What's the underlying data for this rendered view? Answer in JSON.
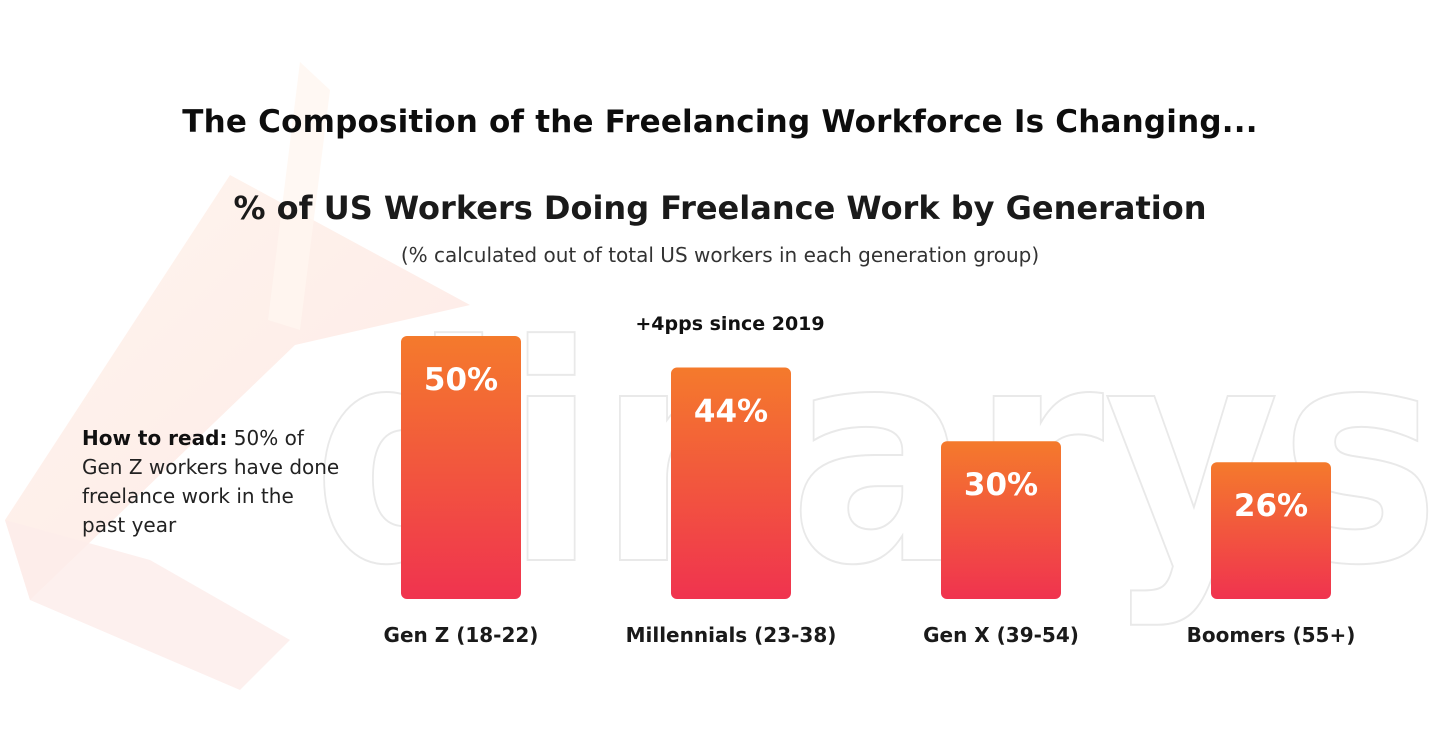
{
  "title": "The Composition of the Freelancing Workforce Is Changing...",
  "subtitle": "% of US Workers Doing Freelance Work by Generation",
  "note": "(% calculated out of total US workers in each generation group)",
  "how_to_read": {
    "label": "How to read:",
    "text": "50% of Gen Z workers have done freelance work in the past year"
  },
  "annotation": "+4pps since 2019",
  "watermark": "dinarys",
  "colors": {
    "bar_top": "#f47a2c",
    "bar_bottom": "#f0334f",
    "watermark_tint": "#fde9e4"
  },
  "chart_data": {
    "type": "bar",
    "title": "% of US Workers Doing Freelance Work by Generation",
    "categories": [
      "Gen Z (18-22)",
      "Millennials (23-38)",
      "Gen X (39-54)",
      "Boomers (55+)"
    ],
    "values": [
      50,
      44,
      30,
      26
    ],
    "value_labels": [
      "50%",
      "44%",
      "30%",
      "26%"
    ],
    "unit": "%",
    "ylim": [
      0,
      50
    ],
    "grid": false,
    "legend": "none",
    "xlabel": "",
    "ylabel": ""
  }
}
